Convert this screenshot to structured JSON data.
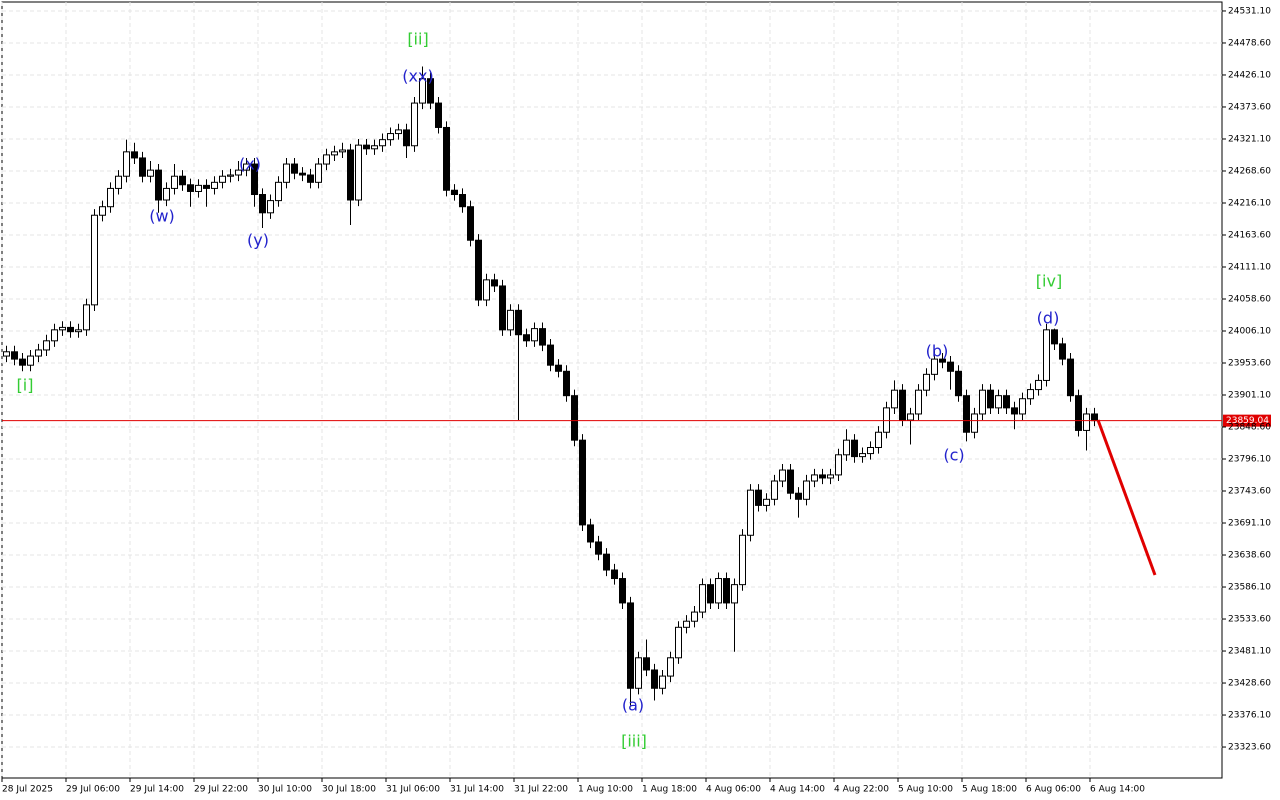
{
  "chart_data": {
    "type": "candlestick",
    "categories": [
      "28 Jul 2025",
      null,
      null,
      null,
      null,
      null,
      null,
      null,
      "29 Jul 06:00",
      null,
      null,
      null,
      null,
      null,
      null,
      null,
      "29 Jul 14:00",
      null,
      null,
      null,
      null,
      null,
      null,
      null,
      "29 Jul 22:00",
      null,
      null,
      null,
      null,
      null,
      null,
      null,
      "30 Jul 10:00",
      null,
      null,
      null,
      null,
      null,
      null,
      null,
      "30 Jul 18:00",
      null,
      null,
      null,
      null,
      null,
      null,
      null,
      "31 Jul 06:00",
      null,
      null,
      null,
      null,
      null,
      null,
      null,
      "31 Jul 14:00",
      null,
      null,
      null,
      null,
      null,
      null,
      null,
      "31 Jul 22:00",
      null,
      null,
      null,
      null,
      null,
      null,
      null,
      "1 Aug 10:00",
      null,
      null,
      null,
      null,
      null,
      null,
      null,
      "1 Aug 18:00",
      null,
      null,
      null,
      null,
      null,
      null,
      null,
      "4 Aug 06:00",
      null,
      null,
      null,
      null,
      null,
      null,
      null,
      "4 Aug 14:00",
      null,
      null,
      null,
      null,
      null,
      null,
      null,
      "4 Aug 22:00",
      null,
      null,
      null,
      null,
      null,
      null,
      null,
      "5 Aug 10:00",
      null,
      null,
      null,
      null,
      null,
      null,
      null,
      "5 Aug 18:00",
      null,
      null,
      null,
      null,
      null,
      null,
      null,
      "6 Aug 06:00",
      null,
      null,
      null,
      null,
      null,
      null,
      null,
      "6 Aug 14:00"
    ],
    "open": [
      23965,
      23972,
      23960,
      23950,
      23965,
      23975,
      23990,
      24008,
      24012,
      24005,
      24008,
      24049,
      24196,
      24210,
      24240,
      24260,
      24300,
      24290,
      24260,
      24270,
      24221,
      24240,
      24260,
      24246,
      24235,
      24245,
      24240,
      24250,
      24260,
      24262,
      24270,
      24280,
      24230,
      24200,
      24220,
      24250,
      24280,
      24265,
      24262,
      24250,
      24280,
      24295,
      24300,
      24303,
      24221,
      24311,
      24305,
      24310,
      24320,
      24330,
      24336,
      24310,
      24380,
      24420,
      24380,
      24340,
      24237,
      24230,
      24210,
      24155,
      24057,
      24090,
      24080,
      24008,
      24040,
      24000,
      23990,
      24010,
      23983,
      23950,
      23940,
      23900,
      23827,
      23688,
      23660,
      23640,
      23614,
      23600,
      23560,
      23420,
      23470,
      23450,
      23420,
      23440,
      23470,
      23520,
      23530,
      23545,
      23590,
      23560,
      23600,
      23560,
      23590,
      23671,
      23745,
      23720,
      23730,
      23760,
      23778,
      23740,
      23730,
      23760,
      23770,
      23765,
      23770,
      23803,
      23827,
      23800,
      23805,
      23815,
      23840,
      23880,
      23909,
      23860,
      23870,
      23909,
      23935,
      23960,
      23955,
      23940,
      23900,
      23840,
      23870,
      23909,
      23880,
      23900,
      23880,
      23870,
      23895,
      23910,
      23925,
      24008,
      23985,
      23960,
      23900,
      23843,
      23870
    ],
    "high": [
      23982,
      23982,
      23970,
      23975,
      23985,
      24000,
      24018,
      24022,
      24022,
      24018,
      24059,
      24206,
      24220,
      24250,
      24270,
      24320,
      24315,
      24300,
      24285,
      24280,
      24250,
      24280,
      24270,
      24256,
      24255,
      24255,
      24260,
      24270,
      24272,
      24285,
      24290,
      24290,
      24240,
      24230,
      24260,
      24290,
      24290,
      24275,
      24272,
      24290,
      24305,
      24310,
      24315,
      24313,
      24321,
      24321,
      24320,
      24330,
      24340,
      24346,
      24346,
      24390,
      24440,
      24430,
      24390,
      24350,
      24247,
      24240,
      24220,
      24165,
      24100,
      24100,
      24090,
      24050,
      24050,
      24010,
      24020,
      24020,
      23993,
      23960,
      23950,
      23910,
      23837,
      23698,
      23670,
      23650,
      23624,
      23610,
      23570,
      23480,
      23500,
      23460,
      23450,
      23480,
      23530,
      23540,
      23555,
      23600,
      23600,
      23610,
      23610,
      23600,
      23681,
      23755,
      23755,
      23740,
      23770,
      23788,
      23788,
      23750,
      23770,
      23780,
      23780,
      23780,
      23813,
      23845,
      23837,
      23815,
      23825,
      23850,
      23890,
      23925,
      23919,
      23880,
      23919,
      23945,
      23975,
      23970,
      23965,
      23950,
      23910,
      23880,
      23919,
      23919,
      23910,
      23910,
      23890,
      23905,
      23920,
      23935,
      24018,
      24010,
      23995,
      23970,
      23910,
      23880,
      23880
    ],
    "low": [
      23955,
      23950,
      23940,
      23940,
      23955,
      23965,
      23980,
      23998,
      23995,
      23995,
      23998,
      24039,
      24186,
      24200,
      24230,
      24250,
      24280,
      24250,
      24250,
      24200,
      24211,
      24230,
      24236,
      24210,
      24225,
      24210,
      24230,
      24240,
      24250,
      24252,
      24260,
      24210,
      24175,
      24190,
      24210,
      24240,
      24255,
      24252,
      24240,
      24240,
      24270,
      24285,
      24290,
      24180,
      24211,
      24295,
      24295,
      24300,
      24310,
      24320,
      24290,
      24300,
      24370,
      24370,
      24330,
      24227,
      24220,
      24200,
      24145,
      24047,
      24047,
      24070,
      23998,
      23998,
      23860,
      23980,
      23980,
      23973,
      23940,
      23930,
      23890,
      23817,
      23678,
      23650,
      23630,
      23604,
      23590,
      23550,
      23392,
      23410,
      23440,
      23400,
      23410,
      23430,
      23460,
      23510,
      23520,
      23535,
      23550,
      23550,
      23550,
      23480,
      23580,
      23661,
      23710,
      23710,
      23720,
      23750,
      23730,
      23700,
      23720,
      23750,
      23755,
      23755,
      23760,
      23793,
      23790,
      23790,
      23795,
      23805,
      23830,
      23870,
      23850,
      23820,
      23860,
      23899,
      23925,
      23945,
      23910,
      23890,
      23825,
      23830,
      23860,
      23870,
      23870,
      23870,
      23845,
      23860,
      23885,
      23900,
      23915,
      23975,
      23950,
      23890,
      23833,
      23810,
      23850
    ],
    "close": [
      23972,
      23960,
      23950,
      23965,
      23975,
      23990,
      24008,
      24012,
      24005,
      24008,
      24049,
      24196,
      24210,
      24240,
      24260,
      24300,
      24290,
      24260,
      24270,
      24221,
      24240,
      24260,
      24246,
      24235,
      24245,
      24240,
      24250,
      24260,
      24262,
      24270,
      24280,
      24230,
      24200,
      24220,
      24250,
      24280,
      24265,
      24262,
      24250,
      24280,
      24295,
      24300,
      24303,
      24221,
      24311,
      24305,
      24310,
      24320,
      24330,
      24336,
      24310,
      24380,
      24420,
      24380,
      24340,
      24237,
      24230,
      24210,
      24155,
      24057,
      24090,
      24080,
      24008,
      24040,
      24000,
      23990,
      24010,
      23983,
      23950,
      23940,
      23900,
      23827,
      23688,
      23660,
      23640,
      23614,
      23600,
      23560,
      23420,
      23470,
      23450,
      23420,
      23440,
      23470,
      23520,
      23530,
      23545,
      23590,
      23560,
      23600,
      23560,
      23590,
      23671,
      23745,
      23720,
      23730,
      23760,
      23778,
      23740,
      23730,
      23760,
      23770,
      23765,
      23770,
      23803,
      23827,
      23800,
      23805,
      23815,
      23840,
      23880,
      23909,
      23860,
      23870,
      23909,
      23935,
      23960,
      23955,
      23940,
      23900,
      23840,
      23870,
      23909,
      23880,
      23900,
      23880,
      23870,
      23895,
      23910,
      23925,
      24008,
      23985,
      23960,
      23900,
      23843,
      23870,
      23859.04
    ],
    "bull_color": "#ffffff",
    "bear_color": "#000000",
    "ylim": [
      23272.8,
      24549.1
    ],
    "yticks": [
      {
        "value": 24531.1,
        "label": "24531.10"
      },
      {
        "value": 24478.6,
        "label": "24478.60"
      },
      {
        "value": 24426.1,
        "label": "24426.10"
      },
      {
        "value": 24373.6,
        "label": "24373.60"
      },
      {
        "value": 24321.1,
        "label": "24321.10"
      },
      {
        "value": 24268.6,
        "label": "24268.60"
      },
      {
        "value": 24216.1,
        "label": "24216.10"
      },
      {
        "value": 24163.6,
        "label": "24163.60"
      },
      {
        "value": 24111.1,
        "label": "24111.10"
      },
      {
        "value": 24058.6,
        "label": "24058.60"
      },
      {
        "value": 24006.1,
        "label": "24006.10"
      },
      {
        "value": 23953.6,
        "label": "23953.60"
      },
      {
        "value": 23901.1,
        "label": "23901.10"
      },
      {
        "value": 23848.6,
        "label": "23848.60"
      },
      {
        "value": 23796.1,
        "label": "23796.10"
      },
      {
        "value": 23743.6,
        "label": "23743.60"
      },
      {
        "value": 23691.1,
        "label": "23691.10"
      },
      {
        "value": 23638.6,
        "label": "23638.60"
      },
      {
        "value": 23586.1,
        "label": "23586.10"
      },
      {
        "value": 23533.6,
        "label": "23533.60"
      },
      {
        "value": 23481.1,
        "label": "23481.10"
      },
      {
        "value": 23428.6,
        "label": "23428.60"
      },
      {
        "value": 23376.1,
        "label": "23376.10"
      },
      {
        "value": 23323.6,
        "label": "23323.60"
      }
    ],
    "grid": true,
    "price_line": {
      "value": 23859.04,
      "color": "#e00000"
    },
    "annotations": [
      {
        "text": "[i]",
        "color": "#33cc33"
      },
      {
        "text": "[ii]",
        "color": "#33cc33"
      },
      {
        "text": "(w)",
        "color": "#2222cc"
      },
      {
        "text": "(x)",
        "color": "#2222cc"
      },
      {
        "text": "(y)",
        "color": "#2222cc"
      },
      {
        "text": "(xx)",
        "color": "#2222cc"
      },
      {
        "text": "[iii]",
        "color": "#33cc33"
      },
      {
        "text": "(a)",
        "color": "#2222cc"
      },
      {
        "text": "(b)",
        "color": "#2222cc"
      },
      {
        "text": "(c)",
        "color": "#2222cc"
      },
      {
        "text": "[iv]",
        "color": "#33cc33"
      },
      {
        "text": "(d)",
        "color": "#2222cc"
      }
    ]
  }
}
